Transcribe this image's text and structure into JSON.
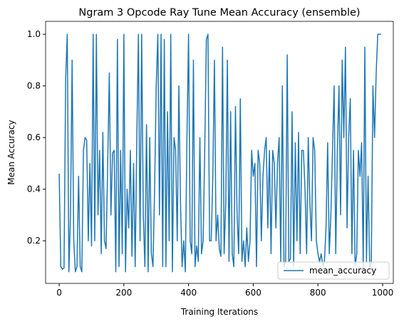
{
  "chart_data": {
    "type": "line",
    "title": "Ngram 3 Opcode Ray Tune Mean Accuracy (ensemble)",
    "xlabel": "Training Iterations",
    "ylabel": "Mean Accuracy",
    "x": [
      0,
      5,
      10,
      15,
      20,
      25,
      30,
      35,
      40,
      45,
      50,
      55,
      60,
      65,
      70,
      75,
      80,
      85,
      90,
      95,
      100,
      105,
      110,
      115,
      120,
      125,
      130,
      135,
      140,
      145,
      150,
      155,
      160,
      165,
      170,
      175,
      180,
      185,
      190,
      195,
      200,
      205,
      210,
      215,
      220,
      225,
      230,
      235,
      240,
      245,
      250,
      255,
      260,
      265,
      270,
      275,
      280,
      285,
      290,
      295,
      300,
      305,
      310,
      315,
      320,
      325,
      330,
      335,
      340,
      345,
      350,
      355,
      360,
      365,
      370,
      375,
      380,
      385,
      390,
      395,
      400,
      405,
      410,
      415,
      420,
      425,
      430,
      435,
      440,
      445,
      450,
      455,
      460,
      465,
      470,
      475,
      480,
      485,
      490,
      495,
      500,
      505,
      510,
      515,
      520,
      525,
      530,
      535,
      540,
      545,
      550,
      555,
      560,
      565,
      570,
      575,
      580,
      585,
      590,
      595,
      600,
      605,
      610,
      615,
      620,
      625,
      630,
      635,
      640,
      645,
      650,
      655,
      660,
      665,
      670,
      675,
      680,
      685,
      690,
      695,
      700,
      705,
      710,
      715,
      720,
      725,
      730,
      735,
      740,
      745,
      750,
      755,
      760,
      765,
      770,
      775,
      780,
      785,
      790,
      795,
      800,
      805,
      810,
      815,
      820,
      825,
      830,
      835,
      840,
      845,
      850,
      855,
      860,
      865,
      870,
      875,
      880,
      885,
      890,
      895,
      900,
      905,
      910,
      915,
      920,
      925,
      930,
      935,
      940,
      945,
      950,
      955,
      960,
      965,
      970,
      975,
      980,
      985,
      990,
      995
    ],
    "series": [
      {
        "name": "mean_accuracy",
        "color": "#1f77b4",
        "values": [
          0.46,
          0.1,
          0.09,
          0.095,
          0.83,
          1.0,
          0.08,
          0.3,
          0.9,
          0.2,
          0.08,
          0.1,
          0.45,
          0.1,
          0.08,
          0.55,
          0.6,
          0.59,
          0.2,
          0.5,
          0.18,
          1.0,
          0.2,
          1.0,
          0.3,
          0.55,
          0.15,
          0.62,
          0.2,
          0.17,
          0.5,
          0.85,
          0.3,
          0.54,
          0.55,
          0.08,
          0.98,
          0.1,
          0.55,
          0.15,
          1.0,
          0.08,
          0.4,
          0.25,
          0.55,
          0.14,
          0.5,
          0.1,
          0.6,
          1.0,
          0.2,
          1.0,
          0.3,
          0.1,
          0.65,
          0.08,
          0.6,
          0.15,
          0.1,
          0.4,
          0.8,
          1.0,
          0.3,
          1.0,
          0.1,
          0.98,
          0.1,
          0.7,
          0.2,
          1.0,
          0.08,
          0.6,
          0.55,
          0.2,
          0.8,
          0.35,
          0.1,
          0.2,
          0.08,
          0.6,
          1.0,
          0.2,
          0.15,
          0.9,
          0.1,
          0.18,
          0.12,
          0.6,
          0.15,
          0.2,
          0.55,
          0.98,
          1.0,
          0.2,
          0.2,
          0.45,
          0.9,
          0.2,
          0.3,
          0.17,
          0.14,
          0.95,
          0.15,
          0.35,
          0.9,
          0.12,
          0.7,
          0.15,
          0.1,
          0.72,
          0.3,
          0.15,
          0.75,
          0.12,
          0.2,
          0.1,
          0.25,
          0.12,
          0.2,
          0.55,
          0.45,
          0.5,
          0.1,
          0.55,
          0.5,
          0.2,
          0.45,
          0.55,
          0.6,
          0.25,
          0.55,
          0.15,
          0.55,
          0.5,
          0.25,
          0.5,
          0.6,
          0.12,
          0.8,
          0.1,
          0.12,
          0.92,
          0.12,
          0.13,
          0.7,
          0.1,
          0.58,
          0.2,
          0.62,
          0.15,
          0.55,
          0.55,
          0.4,
          0.15,
          0.6,
          0.35,
          0.2,
          0.6,
          0.55,
          0.2,
          0.15,
          0.12,
          0.15,
          0.1,
          0.12,
          0.25,
          0.58,
          0.15,
          0.3,
          0.55,
          0.8,
          0.15,
          0.55,
          0.8,
          0.3,
          0.9,
          0.6,
          0.95,
          0.25,
          0.6,
          0.75,
          0.15,
          0.55,
          0.1,
          0.15,
          0.55,
          0.45,
          0.58,
          0.1,
          0.95,
          0.12,
          0.45,
          0.1,
          0.12,
          0.8,
          0.6,
          0.85,
          1.0,
          1.0,
          1.0
        ]
      }
    ],
    "xlim": [
      -42,
      1033
    ],
    "ylim": [
      0.035,
      1.05
    ],
    "xticks": [
      0,
      200,
      400,
      600,
      800,
      1000
    ],
    "yticks": [
      0.2,
      0.4,
      0.6,
      0.8,
      {
        "value": 1,
        "label": "1.0"
      }
    ],
    "legend": "lower right"
  }
}
